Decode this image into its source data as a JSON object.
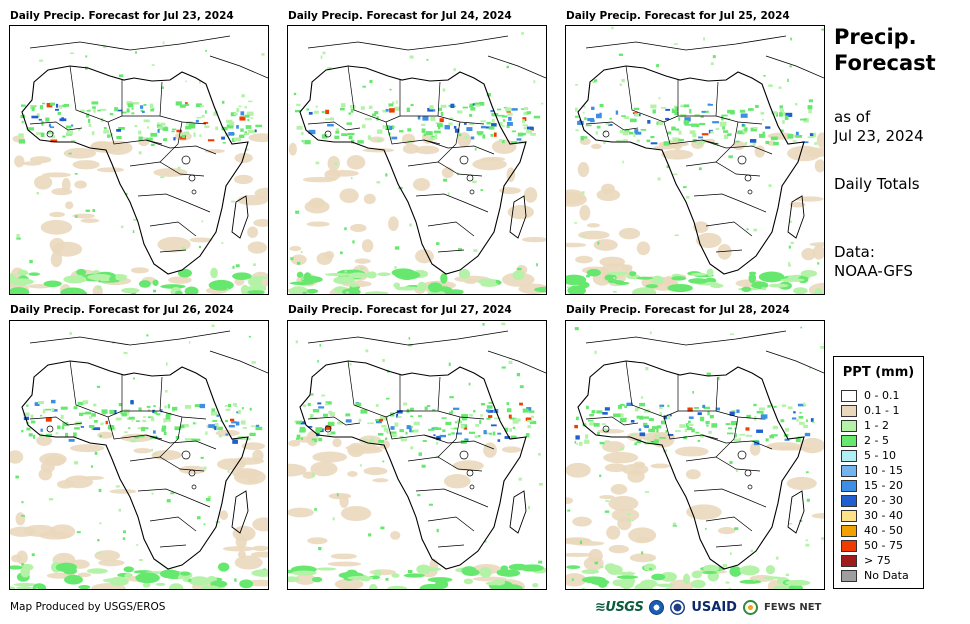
{
  "panels": [
    {
      "title": "Daily Precip. Forecast for Jul 23, 2024"
    },
    {
      "title": "Daily Precip. Forecast for Jul 24, 2024"
    },
    {
      "title": "Daily Precip. Forecast for Jul 25, 2024"
    },
    {
      "title": "Daily Precip. Forecast for Jul 26, 2024"
    },
    {
      "title": "Daily Precip. Forecast for Jul 27, 2024"
    },
    {
      "title": "Daily Precip. Forecast for Jul 28, 2024"
    }
  ],
  "side": {
    "title_line1": "Precip.",
    "title_line2": "Forecast",
    "asof_line1": "as of",
    "asof_line2": "Jul 23, 2024",
    "totals": "Daily Totals",
    "data_line1": "Data:",
    "data_line2": "NOAA-GFS"
  },
  "legend": {
    "title": "PPT (mm)",
    "items": [
      {
        "label": "0 - 0.1",
        "color": "#ffffff"
      },
      {
        "label": "0.1 - 1",
        "color": "#ead8bd"
      },
      {
        "label": "1 - 2",
        "color": "#b4f2a8"
      },
      {
        "label": "2 - 5",
        "color": "#66e86e"
      },
      {
        "label": "5 - 10",
        "color": "#b0f0f5"
      },
      {
        "label": "10 - 15",
        "color": "#73b4ee"
      },
      {
        "label": "15 - 20",
        "color": "#3c8ee6"
      },
      {
        "label": "20 - 30",
        "color": "#1f5fd0"
      },
      {
        "label": "30 - 40",
        "color": "#fde28a"
      },
      {
        "label": "40 - 50",
        "color": "#f3a100"
      },
      {
        "label": "50 - 75",
        "color": "#f03c00"
      },
      {
        "label": "> 75",
        "color": "#a01c1c"
      },
      {
        "label": "No Data",
        "color": "#9e9e9e"
      }
    ]
  },
  "footer": {
    "credit": "Map Produced by USGS/EROS",
    "logo_usgs": "≋USGS",
    "logo_usaid": "USAID",
    "logo_fews": "FEWS NET"
  }
}
